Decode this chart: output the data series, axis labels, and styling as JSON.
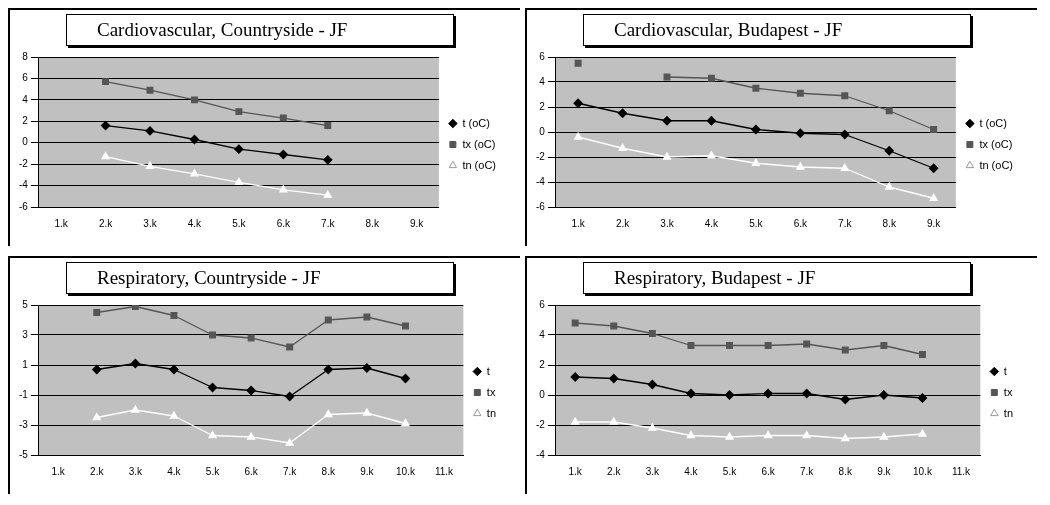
{
  "chart_data": [
    {
      "type": "line",
      "title": "Cardiovascular, Countryside - JF",
      "categories": [
        "1.k",
        "2.k",
        "3.k",
        "4.k",
        "5.k",
        "6.k",
        "7.k",
        "8.k",
        "9.k"
      ],
      "ylim": [
        -6,
        8
      ],
      "yticks": [
        -6,
        -4,
        -2,
        0,
        2,
        4,
        6,
        8
      ],
      "grid": "y",
      "legend": "right",
      "series": [
        {
          "name": "t (oC)",
          "color": "#000000",
          "marker": "diamond",
          "values": [
            null,
            1.6,
            1.1,
            0.3,
            -0.6,
            -1.1,
            -1.6,
            null,
            null
          ]
        },
        {
          "name": "tx (oC)",
          "color": "#555555",
          "marker": "square",
          "values": [
            null,
            5.7,
            4.9,
            4.0,
            2.9,
            2.3,
            1.6,
            null,
            null
          ]
        },
        {
          "name": "tn (oC)",
          "color": "#ffffff",
          "marker": "triangle",
          "values": [
            null,
            -1.3,
            -2.2,
            -2.9,
            -3.7,
            -4.4,
            -4.9,
            null,
            null
          ]
        }
      ]
    },
    {
      "type": "line",
      "title": "Cardiovascular, Budapest - JF",
      "categories": [
        "1.k",
        "2.k",
        "3.k",
        "4.k",
        "5.k",
        "6.k",
        "7.k",
        "8.k",
        "9.k"
      ],
      "ylim": [
        -6,
        6
      ],
      "yticks": [
        -6,
        -4,
        -2,
        0,
        2,
        4,
        6
      ],
      "grid": "y",
      "legend": "right",
      "series": [
        {
          "name": "t (oC)",
          "color": "#000000",
          "marker": "diamond",
          "values": [
            2.3,
            1.5,
            0.9,
            0.9,
            0.2,
            -0.1,
            -0.2,
            -1.5,
            -2.9
          ]
        },
        {
          "name": "tx (oC)",
          "color": "#555555",
          "marker": "square",
          "values": [
            5.5,
            null,
            4.4,
            4.3,
            3.5,
            3.1,
            2.9,
            1.7,
            0.2
          ]
        },
        {
          "name": "tn (oC)",
          "color": "#ffffff",
          "marker": "triangle",
          "values": [
            -0.4,
            -1.3,
            -2.0,
            -1.9,
            -2.5,
            -2.8,
            -2.9,
            -4.4,
            -5.3
          ]
        }
      ]
    },
    {
      "type": "line",
      "title": "Respiratory, Countryside - JF",
      "categories": [
        "1.k",
        "2.k",
        "3.k",
        "4.k",
        "5.k",
        "6.k",
        "7.k",
        "8.k",
        "9.k",
        "10.k",
        "11.k"
      ],
      "ylim": [
        -5,
        5
      ],
      "yticks": [
        -5,
        -3,
        -1,
        1,
        3,
        5
      ],
      "grid": "y",
      "legend": "right",
      "series": [
        {
          "name": "t",
          "color": "#000000",
          "marker": "diamond",
          "values": [
            null,
            0.7,
            1.1,
            0.7,
            -0.5,
            -0.7,
            -1.1,
            0.7,
            0.8,
            0.1,
            null
          ]
        },
        {
          "name": "tx",
          "color": "#555555",
          "marker": "square",
          "values": [
            null,
            4.5,
            4.9,
            4.3,
            3.0,
            2.8,
            2.2,
            4.0,
            4.2,
            3.6,
            null
          ]
        },
        {
          "name": "tn",
          "color": "#ffffff",
          "marker": "triangle",
          "values": [
            null,
            -2.5,
            -2.0,
            -2.4,
            -3.7,
            -3.8,
            -4.2,
            -2.3,
            -2.2,
            -2.9,
            null
          ]
        }
      ]
    },
    {
      "type": "line",
      "title": "Respiratory, Budapest - JF",
      "categories": [
        "1.k",
        "2.k",
        "3.k",
        "4.k",
        "5.k",
        "6.k",
        "7.k",
        "8.k",
        "9.k",
        "10.k",
        "11.k"
      ],
      "ylim": [
        -4,
        6
      ],
      "yticks": [
        -4,
        -2,
        0,
        2,
        4,
        6
      ],
      "grid": "y",
      "legend": "right",
      "series": [
        {
          "name": "t",
          "color": "#000000",
          "marker": "diamond",
          "values": [
            1.2,
            1.1,
            0.7,
            0.1,
            0.0,
            0.1,
            0.1,
            -0.3,
            0.0,
            -0.2,
            null
          ]
        },
        {
          "name": "tx",
          "color": "#555555",
          "marker": "square",
          "values": [
            4.8,
            4.6,
            4.1,
            3.3,
            3.3,
            3.3,
            3.4,
            3.0,
            3.3,
            2.7,
            null
          ]
        },
        {
          "name": "tn",
          "color": "#ffffff",
          "marker": "triangle",
          "values": [
            -1.8,
            -1.8,
            -2.2,
            -2.7,
            -2.8,
            -2.7,
            -2.7,
            -2.9,
            -2.8,
            -2.6,
            null
          ]
        }
      ]
    }
  ]
}
